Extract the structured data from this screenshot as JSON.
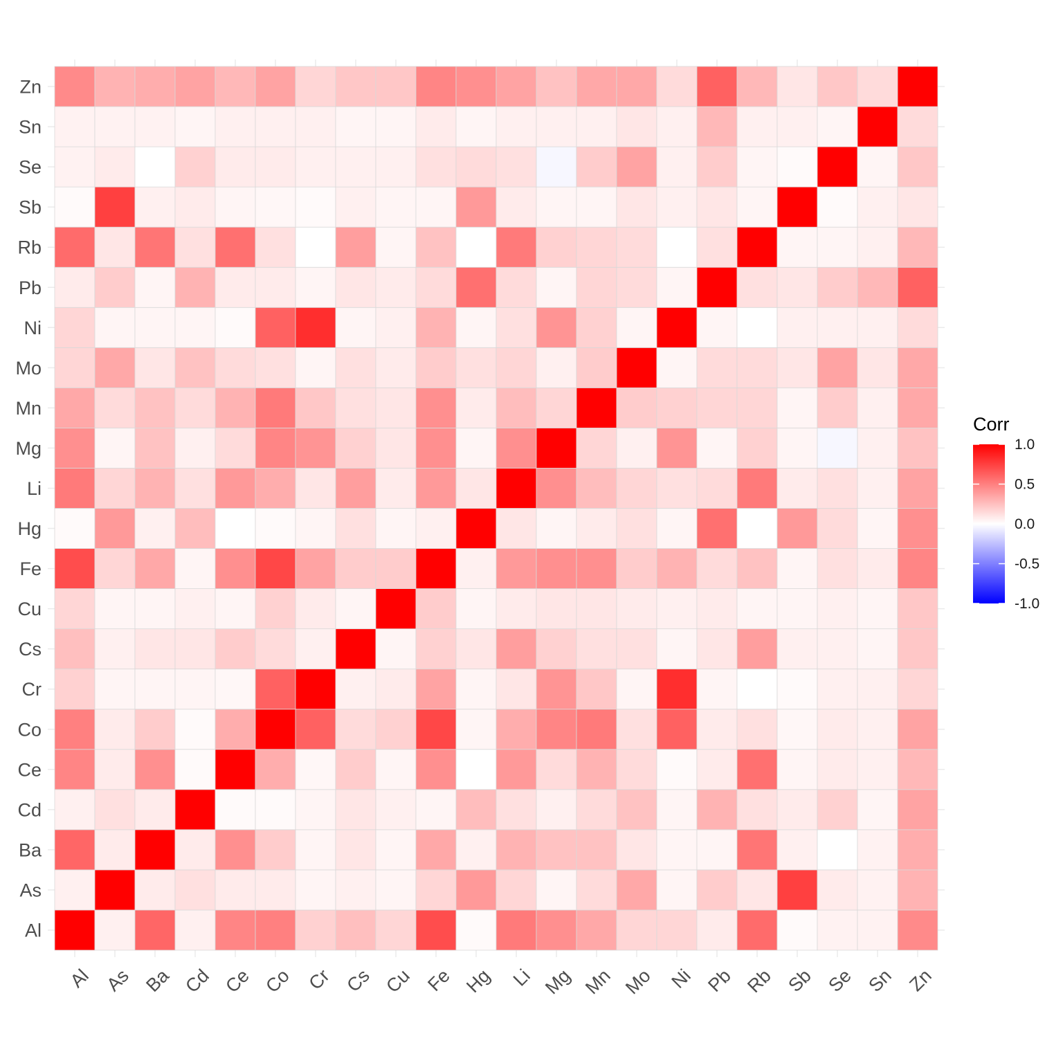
{
  "chart_data": {
    "type": "heatmap",
    "title": "",
    "xlabel": "",
    "ylabel": "",
    "x": [
      "Al",
      "As",
      "Ba",
      "Cd",
      "Ce",
      "Co",
      "Cr",
      "Cs",
      "Cu",
      "Fe",
      "Hg",
      "Li",
      "Mg",
      "Mn",
      "Mo",
      "Ni",
      "Pb",
      "Rb",
      "Sb",
      "Se",
      "Sn",
      "Zn"
    ],
    "y": [
      "Al",
      "As",
      "Ba",
      "Cd",
      "Ce",
      "Co",
      "Cr",
      "Cs",
      "Cu",
      "Fe",
      "Hg",
      "Li",
      "Mg",
      "Mn",
      "Mo",
      "Ni",
      "Pb",
      "Rb",
      "Sb",
      "Se",
      "Sn",
      "Zn"
    ],
    "matrix": [
      [
        1.0,
        0.06,
        0.6,
        0.06,
        0.48,
        0.5,
        0.18,
        0.25,
        0.16,
        0.7,
        0.02,
        0.52,
        0.44,
        0.34,
        0.16,
        0.16,
        0.08,
        0.58,
        0.02,
        0.05,
        0.05,
        0.46
      ],
      [
        0.06,
        1.0,
        0.08,
        0.12,
        0.08,
        0.08,
        0.04,
        0.06,
        0.04,
        0.16,
        0.4,
        0.16,
        0.04,
        0.14,
        0.34,
        0.04,
        0.2,
        0.1,
        0.75,
        0.08,
        0.05,
        0.3
      ],
      [
        0.6,
        0.08,
        1.0,
        0.08,
        0.44,
        0.2,
        0.04,
        0.1,
        0.04,
        0.34,
        0.06,
        0.3,
        0.24,
        0.24,
        0.1,
        0.04,
        0.04,
        0.54,
        0.06,
        0.0,
        0.05,
        0.32
      ],
      [
        0.06,
        0.12,
        0.08,
        1.0,
        0.02,
        0.02,
        0.04,
        0.1,
        0.06,
        0.04,
        0.26,
        0.12,
        0.06,
        0.14,
        0.24,
        0.04,
        0.3,
        0.12,
        0.08,
        0.18,
        0.04,
        0.36
      ],
      [
        0.48,
        0.08,
        0.44,
        0.02,
        1.0,
        0.32,
        0.03,
        0.2,
        0.04,
        0.44,
        0.0,
        0.4,
        0.14,
        0.3,
        0.14,
        0.02,
        0.08,
        0.56,
        0.04,
        0.08,
        0.06,
        0.28
      ],
      [
        0.5,
        0.08,
        0.2,
        0.02,
        0.32,
        1.0,
        0.62,
        0.14,
        0.18,
        0.72,
        0.04,
        0.32,
        0.48,
        0.52,
        0.12,
        0.62,
        0.08,
        0.12,
        0.03,
        0.08,
        0.06,
        0.36
      ],
      [
        0.18,
        0.04,
        0.04,
        0.04,
        0.03,
        0.62,
        1.0,
        0.06,
        0.08,
        0.36,
        0.04,
        0.1,
        0.42,
        0.22,
        0.04,
        0.82,
        0.04,
        0.0,
        0.02,
        0.06,
        0.06,
        0.16
      ],
      [
        0.25,
        0.06,
        0.1,
        0.1,
        0.2,
        0.14,
        0.06,
        1.0,
        0.04,
        0.18,
        0.1,
        0.38,
        0.18,
        0.12,
        0.12,
        0.04,
        0.1,
        0.38,
        0.06,
        0.06,
        0.04,
        0.22
      ],
      [
        0.16,
        0.04,
        0.04,
        0.06,
        0.04,
        0.18,
        0.08,
        0.04,
        1.0,
        0.2,
        0.04,
        0.08,
        0.1,
        0.1,
        0.08,
        0.06,
        0.08,
        0.04,
        0.04,
        0.06,
        0.04,
        0.22
      ],
      [
        0.7,
        0.16,
        0.34,
        0.04,
        0.44,
        0.72,
        0.36,
        0.2,
        0.2,
        1.0,
        0.06,
        0.4,
        0.44,
        0.44,
        0.2,
        0.3,
        0.14,
        0.24,
        0.04,
        0.12,
        0.08,
        0.48
      ],
      [
        0.02,
        0.4,
        0.06,
        0.26,
        0.0,
        0.02,
        0.04,
        0.12,
        0.04,
        0.06,
        1.0,
        0.1,
        0.04,
        0.08,
        0.12,
        0.04,
        0.56,
        0.0,
        0.4,
        0.14,
        0.04,
        0.44
      ],
      [
        0.52,
        0.16,
        0.3,
        0.12,
        0.4,
        0.32,
        0.1,
        0.38,
        0.08,
        0.4,
        0.1,
        1.0,
        0.44,
        0.26,
        0.16,
        0.12,
        0.14,
        0.52,
        0.08,
        0.12,
        0.06,
        0.36
      ],
      [
        0.44,
        0.04,
        0.24,
        0.06,
        0.14,
        0.48,
        0.42,
        0.18,
        0.1,
        0.44,
        0.04,
        0.44,
        1.0,
        0.16,
        0.06,
        0.42,
        0.04,
        0.18,
        0.04,
        -0.03,
        0.06,
        0.24
      ],
      [
        0.34,
        0.14,
        0.24,
        0.14,
        0.3,
        0.52,
        0.22,
        0.12,
        0.1,
        0.44,
        0.08,
        0.26,
        0.16,
        1.0,
        0.2,
        0.18,
        0.16,
        0.16,
        0.04,
        0.2,
        0.06,
        0.34
      ],
      [
        0.16,
        0.34,
        0.1,
        0.24,
        0.14,
        0.12,
        0.04,
        0.12,
        0.08,
        0.2,
        0.12,
        0.16,
        0.06,
        0.2,
        1.0,
        0.04,
        0.14,
        0.14,
        0.1,
        0.36,
        0.1,
        0.34
      ],
      [
        0.16,
        0.04,
        0.04,
        0.04,
        0.02,
        0.62,
        0.82,
        0.04,
        0.06,
        0.3,
        0.04,
        0.12,
        0.42,
        0.18,
        0.04,
        1.0,
        0.04,
        0.0,
        0.06,
        0.06,
        0.06,
        0.14
      ],
      [
        0.08,
        0.2,
        0.04,
        0.3,
        0.08,
        0.08,
        0.04,
        0.1,
        0.08,
        0.14,
        0.56,
        0.14,
        0.04,
        0.16,
        0.14,
        0.04,
        1.0,
        0.12,
        0.1,
        0.2,
        0.28,
        0.62
      ],
      [
        0.58,
        0.1,
        0.54,
        0.12,
        0.56,
        0.12,
        0.0,
        0.38,
        0.04,
        0.24,
        0.0,
        0.52,
        0.18,
        0.16,
        0.14,
        0.0,
        0.12,
        1.0,
        0.04,
        0.04,
        0.06,
        0.28
      ],
      [
        0.02,
        0.75,
        0.06,
        0.08,
        0.04,
        0.03,
        0.02,
        0.06,
        0.04,
        0.04,
        0.4,
        0.08,
        0.04,
        0.04,
        0.1,
        0.06,
        0.1,
        0.04,
        1.0,
        0.02,
        0.06,
        0.1
      ],
      [
        0.05,
        0.08,
        0.0,
        0.18,
        0.08,
        0.08,
        0.06,
        0.06,
        0.06,
        0.12,
        0.14,
        0.12,
        -0.03,
        0.2,
        0.36,
        0.06,
        0.2,
        0.04,
        0.02,
        1.0,
        0.04,
        0.22
      ],
      [
        0.05,
        0.05,
        0.05,
        0.04,
        0.06,
        0.06,
        0.06,
        0.04,
        0.04,
        0.08,
        0.04,
        0.06,
        0.06,
        0.06,
        0.1,
        0.06,
        0.28,
        0.06,
        0.06,
        0.04,
        1.0,
        0.14
      ],
      [
        0.46,
        0.3,
        0.32,
        0.36,
        0.28,
        0.36,
        0.16,
        0.22,
        0.22,
        0.48,
        0.44,
        0.36,
        0.24,
        0.34,
        0.34,
        0.14,
        0.62,
        0.28,
        0.1,
        0.22,
        0.14,
        1.0
      ]
    ],
    "color_scale": {
      "low": "#0000FF",
      "mid": "#FFFFFF",
      "high": "#FF0000",
      "limits": [
        -1,
        1
      ]
    },
    "legend": {
      "title": "Corr",
      "position": "right",
      "breaks": [
        "1.0",
        "0.5",
        "0.0",
        "-0.5",
        "-1.0"
      ]
    },
    "grid": true
  }
}
